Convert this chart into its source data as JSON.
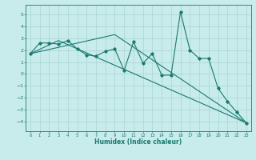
{
  "xlabel": "Humidex (Indice chaleur)",
  "ylabel": "",
  "bg_color": "#c8ebeb",
  "line_color": "#1a7a6e",
  "xlim": [
    -0.5,
    23.5
  ],
  "ylim": [
    -4.8,
    5.8
  ],
  "yticks": [
    -4,
    -3,
    -2,
    -1,
    0,
    1,
    2,
    3,
    4,
    5
  ],
  "xticks": [
    0,
    1,
    2,
    3,
    4,
    5,
    6,
    7,
    8,
    9,
    10,
    11,
    12,
    13,
    14,
    15,
    16,
    17,
    18,
    19,
    20,
    21,
    22,
    23
  ],
  "line1_x": [
    0,
    1,
    2,
    3,
    4,
    5,
    6,
    7,
    8,
    9,
    10,
    11,
    12,
    13,
    14,
    15,
    16,
    17,
    18,
    19,
    20,
    21,
    22,
    23
  ],
  "line1_y": [
    1.7,
    2.6,
    2.6,
    2.5,
    2.8,
    2.1,
    1.6,
    1.5,
    1.9,
    2.1,
    0.3,
    2.7,
    0.9,
    1.7,
    -0.1,
    -0.1,
    5.2,
    2.0,
    1.3,
    1.3,
    -1.2,
    -2.3,
    -3.2,
    -4.1
  ],
  "line2_x": [
    0,
    3,
    23
  ],
  "line2_y": [
    1.7,
    2.8,
    -4.1
  ],
  "line3_x": [
    0,
    9,
    23
  ],
  "line3_y": [
    1.7,
    3.3,
    -4.1
  ],
  "grid_color": "#aad4d4",
  "marker": "D",
  "markersize": 1.8,
  "linewidth": 0.8
}
